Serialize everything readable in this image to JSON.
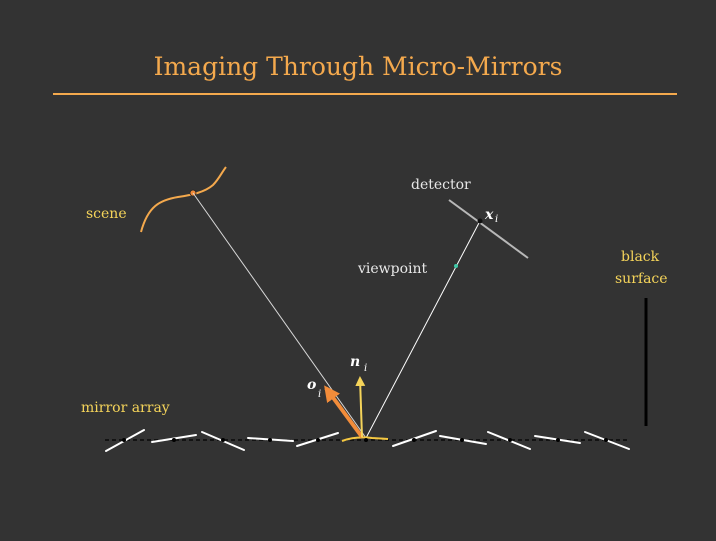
{
  "slide": {
    "title": "Imaging Through Micro-Mirrors"
  },
  "labels": {
    "scene": "scene",
    "detector": "detector",
    "viewpoint": "viewpoint",
    "black_surface_line1": "black",
    "black_surface_line2": "surface",
    "mirror_array": "mirror array"
  },
  "symbols": {
    "x_symbol": "x",
    "x_sub": "i",
    "n_symbol": "n",
    "n_sub": "i",
    "o_symbol": "o",
    "o_sub": "i"
  },
  "colors": {
    "background": "#333333",
    "title": "#f4a94d",
    "scene_curve": "#f4a94d",
    "incident_ray": "#f28c3a",
    "normal_arrow": "#f5d45a",
    "active_mirror": "#f5c842",
    "mirror": "#ffffff",
    "viewpoint_dot": "#3ec9a7",
    "label_white": "#e8e8e8",
    "label_yellow": "#f5d45a"
  }
}
